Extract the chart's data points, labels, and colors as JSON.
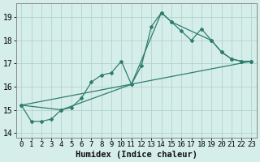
{
  "xlabel": "Humidex (Indice chaleur)",
  "ylabel": "",
  "bg_color": "#d6eeea",
  "grid_color": "#b0d4cc",
  "line_color": "#2e7d6e",
  "xlim": [
    -0.5,
    23.5
  ],
  "ylim": [
    13.8,
    19.6
  ],
  "yticks": [
    14,
    15,
    16,
    17,
    18,
    19
  ],
  "xticks": [
    0,
    1,
    2,
    3,
    4,
    5,
    6,
    7,
    8,
    9,
    10,
    11,
    12,
    13,
    14,
    15,
    16,
    17,
    18,
    19,
    20,
    21,
    22,
    23
  ],
  "line1_x": [
    0,
    1,
    2,
    3,
    4,
    5,
    6,
    7,
    8,
    9,
    10,
    11,
    12,
    13,
    14,
    15,
    16,
    17,
    18,
    19,
    20,
    21,
    22,
    23
  ],
  "line1_y": [
    15.2,
    14.5,
    14.5,
    14.6,
    15.0,
    15.1,
    15.5,
    16.2,
    16.5,
    16.6,
    17.1,
    16.1,
    16.9,
    18.6,
    19.2,
    18.8,
    18.4,
    18.0,
    18.5,
    18.0,
    17.5,
    17.2,
    17.1,
    17.1
  ],
  "line2_x": [
    0,
    4,
    11,
    14,
    15,
    19,
    20,
    21,
    22,
    23
  ],
  "line2_y": [
    15.2,
    15.0,
    16.1,
    19.2,
    18.8,
    18.0,
    17.5,
    17.2,
    17.1,
    17.1
  ],
  "line3_x": [
    0,
    23
  ],
  "line3_y": [
    15.2,
    17.1
  ],
  "tick_fontsize": 6.5,
  "xlabel_fontsize": 7.5
}
